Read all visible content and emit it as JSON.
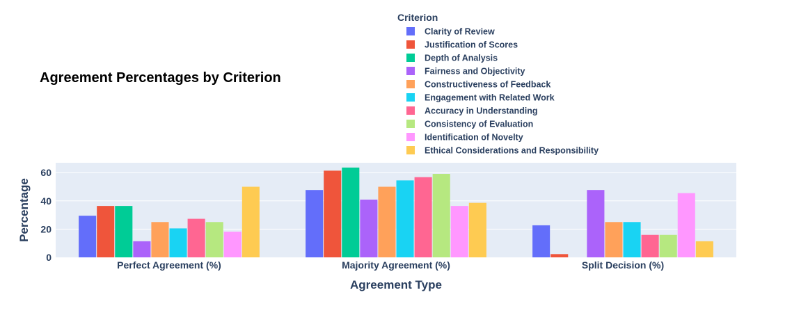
{
  "chart_data": {
    "type": "bar",
    "title": "Agreement Percentages by Criterion",
    "xlabel": "Agreement Type",
    "ylabel": "Percentage",
    "ylim": [
      0,
      67
    ],
    "yticks": [
      0,
      20,
      40,
      60
    ],
    "grid": true,
    "legend": {
      "title": "Criterion",
      "placement": "top"
    },
    "categories": [
      "Perfect Agreement (%)",
      "Majority Agreement (%)",
      "Split Decision (%)"
    ],
    "series": [
      {
        "name": "Clarity of Review",
        "color": "#636efa",
        "values": [
          29.5,
          47.7,
          22.7
        ]
      },
      {
        "name": "Justification of Scores",
        "color": "#ef553b",
        "values": [
          36.4,
          61.4,
          2.3
        ]
      },
      {
        "name": "Depth of Analysis",
        "color": "#00cc96",
        "values": [
          36.4,
          63.6,
          0
        ]
      },
      {
        "name": "Fairness and Objectivity",
        "color": "#ab63fa",
        "values": [
          11.4,
          40.9,
          47.7
        ]
      },
      {
        "name": "Constructiveness of Feedback",
        "color": "#ffa15a",
        "values": [
          25.0,
          50.0,
          25.0
        ]
      },
      {
        "name": "Engagement with Related Work",
        "color": "#19d3f3",
        "values": [
          20.5,
          54.5,
          25.0
        ]
      },
      {
        "name": "Accuracy in Understanding",
        "color": "#ff6692",
        "values": [
          27.3,
          56.8,
          15.9
        ]
      },
      {
        "name": "Consistency of Evaluation",
        "color": "#b6e880",
        "values": [
          25.0,
          59.1,
          15.9
        ]
      },
      {
        "name": "Identification of Novelty",
        "color": "#ff97ff",
        "values": [
          18.2,
          36.4,
          45.5
        ]
      },
      {
        "name": "Ethical Considerations and Responsibility",
        "color": "#fecb52",
        "values": [
          50.0,
          38.6,
          11.4
        ]
      }
    ]
  }
}
